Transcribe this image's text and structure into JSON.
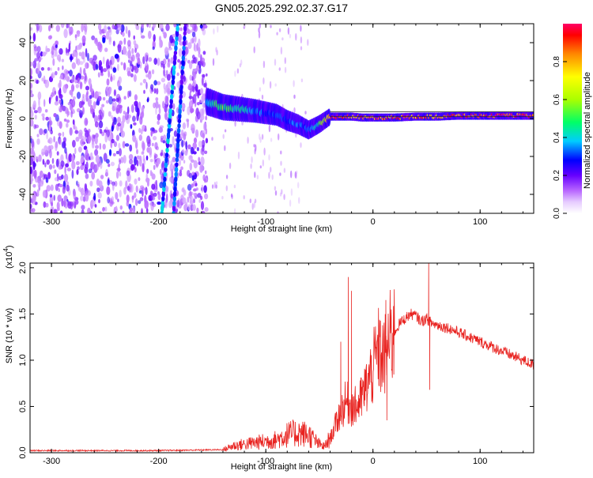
{
  "chart_data": [
    {
      "type": "heatmap",
      "title": "GN05.2025.292.02.37.G17",
      "xlabel": "Height of straight line (km)",
      "ylabel": "Frequency (Hz)",
      "xlim": [
        -320,
        150
      ],
      "ylim": [
        -50,
        50
      ],
      "x_ticks": [
        -300,
        -200,
        -100,
        0,
        100
      ],
      "y_ticks": [
        -40,
        -20,
        0,
        20,
        40
      ],
      "colorbar": {
        "label": "Normalized spectral amplitude",
        "range": [
          0,
          1
        ],
        "ticks": [
          0.0,
          0.2,
          0.4,
          0.6,
          0.8
        ],
        "colors": [
          "#ffffff",
          "#cc99ff",
          "#8800ff",
          "#0000ff",
          "#00ccff",
          "#00ff66",
          "#aaff00",
          "#ffff00",
          "#ff8800",
          "#ff0000",
          "#ff0066"
        ]
      },
      "features": {
        "noise_region_x": [
          -320,
          -155
        ],
        "diagonal_traces": [
          {
            "x_bottom": -197,
            "x_top": -182,
            "amplitude": 0.35
          },
          {
            "x_bottom": -186,
            "x_top": -175,
            "amplitude": 0.3
          }
        ],
        "signal_track": {
          "x": [
            -155,
            -140,
            -125,
            -110,
            -100,
            -90,
            -80,
            -70,
            -60,
            -50,
            -40,
            -30,
            -20,
            -10,
            0,
            20,
            40,
            60,
            80,
            100,
            120,
            150
          ],
          "frequency": [
            9,
            6,
            5,
            4,
            3,
            2,
            -1,
            -3,
            -6,
            -3,
            1,
            1,
            1,
            0.5,
            0.5,
            0.5,
            1,
            1,
            1.5,
            1.5,
            1.5,
            1.5
          ],
          "amplitude": [
            0.4,
            0.5,
            0.45,
            0.35,
            0.3,
            0.3,
            0.3,
            0.35,
            0.3,
            0.45,
            0.85,
            0.9,
            0.8,
            0.85,
            0.9,
            0.85,
            0.85,
            0.85,
            0.88,
            0.9,
            0.9,
            0.9
          ]
        }
      }
    },
    {
      "type": "line",
      "title": "",
      "xlabel": "Height of straight line (km)",
      "ylabel": "SNR (10 * v/v)",
      "scale_label_base": "(x10",
      "scale_label_exp": "4",
      "scale_label_close": ")",
      "xlim": [
        -320,
        150
      ],
      "ylim": [
        0,
        2.05
      ],
      "x_ticks": [
        -300,
        -200,
        -100,
        0,
        100
      ],
      "y_ticks": [
        0.0,
        0.5,
        1.0,
        1.5,
        2.0
      ],
      "color": "#e8221f",
      "envelope": {
        "x": [
          -320,
          -200,
          -140,
          -130,
          -110,
          -90,
          -80,
          -70,
          -60,
          -50,
          -45,
          -40,
          -35,
          -30,
          -25,
          -20,
          -15,
          -10,
          -5,
          0,
          5,
          10,
          15,
          20,
          25,
          30,
          35,
          40,
          45,
          50,
          55,
          60,
          70,
          80,
          90,
          100,
          110,
          120,
          130,
          140,
          150
        ],
        "y": [
          0.02,
          0.02,
          0.03,
          0.07,
          0.1,
          0.13,
          0.18,
          0.2,
          0.18,
          0.08,
          0.06,
          0.15,
          0.3,
          0.45,
          0.55,
          0.5,
          0.5,
          0.6,
          0.75,
          0.9,
          1.1,
          1.0,
          1.2,
          1.3,
          1.4,
          1.45,
          1.5,
          1.48,
          1.42,
          1.45,
          1.4,
          1.38,
          1.35,
          1.3,
          1.25,
          1.2,
          1.15,
          1.1,
          1.05,
          1.0,
          0.95
        ]
      },
      "spikes": [
        {
          "x": -23,
          "y": 1.9
        },
        {
          "x": -20,
          "y": 1.75
        },
        {
          "x": -30,
          "y": 1.2
        },
        {
          "x": 12,
          "y": 1.65
        },
        {
          "x": 13,
          "y": 0.35
        },
        {
          "x": 52,
          "y": 2.05
        },
        {
          "x": 53,
          "y": 0.68
        }
      ]
    }
  ]
}
